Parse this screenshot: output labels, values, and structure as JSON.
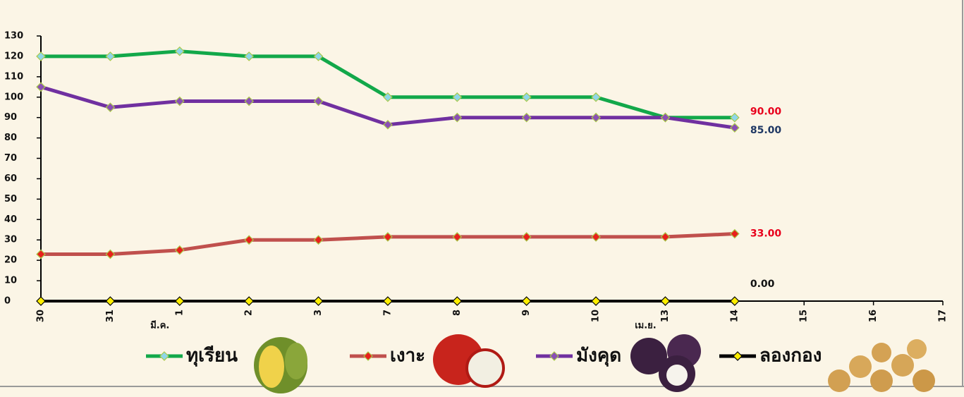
{
  "chart_data": {
    "type": "line",
    "categories": [
      "30",
      "31",
      "1",
      "2",
      "3",
      "7",
      "8",
      "9",
      "10",
      "13",
      "14",
      "15",
      "16",
      "17"
    ],
    "month_labels": [
      "มี.ค.",
      "เม.ย."
    ],
    "ylim": [
      0,
      130
    ],
    "yticks": [
      0,
      10,
      20,
      30,
      40,
      50,
      60,
      70,
      80,
      90,
      100,
      110,
      120,
      130
    ],
    "series": [
      {
        "name": "ทุเรียน",
        "color": "#12a84a",
        "marker_color": "#8fd6e8",
        "label_color": "#e8001c",
        "values": [
          120,
          120,
          122.5,
          120,
          120,
          100,
          100,
          100,
          100,
          90,
          90,
          null,
          null,
          null
        ],
        "value_labels": [
          null,
          null,
          null,
          null,
          null,
          null,
          null,
          null,
          null,
          null,
          "90.00",
          null,
          null,
          null
        ]
      },
      {
        "name": "เงาะ",
        "color": "#c0504d",
        "marker_color": "#e8201c",
        "label_color": "#e8001c",
        "values": [
          23,
          23,
          25,
          30,
          30,
          31.5,
          31.5,
          31.5,
          31.5,
          31.5,
          33,
          null,
          null,
          null
        ],
        "value_labels": [
          null,
          null,
          null,
          null,
          null,
          null,
          null,
          null,
          null,
          null,
          "33.00",
          null,
          null,
          null
        ]
      },
      {
        "name": "มังคุด",
        "color": "#7030a0",
        "marker_color": "#8a4fb5",
        "label_color": "#1f3864",
        "values": [
          105,
          95,
          98,
          98,
          98,
          86.5,
          90,
          90,
          90,
          90,
          85,
          null,
          null,
          null
        ],
        "value_labels": [
          null,
          null,
          null,
          null,
          null,
          null,
          null,
          null,
          null,
          null,
          "85.00",
          null,
          null,
          null
        ]
      },
      {
        "name": "ลองกอง",
        "color": "#000000",
        "marker_color": "#ffee00",
        "label_color": "#111111",
        "values": [
          0,
          0,
          0,
          0,
          0,
          0,
          0,
          0,
          0,
          0,
          0,
          null,
          null,
          null
        ],
        "value_labels": [
          null,
          null,
          null,
          null,
          null,
          null,
          null,
          null,
          null,
          null,
          "0.00",
          null,
          null,
          null
        ]
      }
    ]
  }
}
